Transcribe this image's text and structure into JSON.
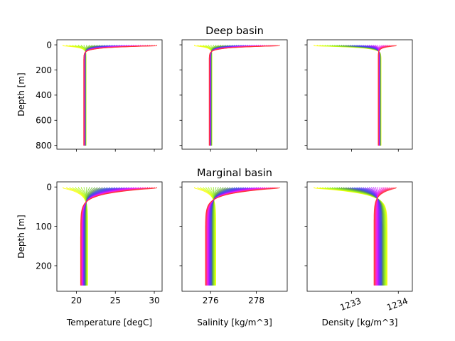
{
  "chart_data": [
    {
      "type": "line",
      "panel": "deep-temperature",
      "row_title": "Deep basin",
      "xlabel": "",
      "ylabel": "Depth [m]",
      "xlim": [
        17.5,
        31
      ],
      "ylim": [
        830,
        -40
      ],
      "y_inverted": true,
      "xticks": [
        20,
        25,
        30
      ],
      "xtick_labels": [],
      "yticks": [
        0,
        200,
        400,
        600,
        800
      ],
      "ytick_labels": [
        "0",
        "200",
        "400",
        "600",
        "800"
      ],
      "profile": {
        "surface_min": 18.3,
        "surface_max": 30.3,
        "deep_value": 21.1,
        "deep_spread": 0.3,
        "max_depth": 800,
        "mixed_layer": 8,
        "thermocline": 40
      }
    },
    {
      "type": "line",
      "panel": "deep-salinity",
      "row_title": "Deep basin",
      "xlabel": "",
      "ylabel": "",
      "xlim": [
        274.75,
        279.35
      ],
      "ylim": [
        830,
        -40
      ],
      "y_inverted": true,
      "xticks": [
        276,
        278
      ],
      "xtick_labels": [],
      "yticks": [
        0,
        200,
        400,
        600,
        800
      ],
      "ytick_labels": [],
      "profile": {
        "surface_min": 275.3,
        "surface_max": 279.0,
        "deep_value": 276.0,
        "deep_spread": 0.12,
        "max_depth": 800,
        "mixed_layer": 8,
        "thermocline": 40
      }
    },
    {
      "type": "line",
      "panel": "deep-density",
      "row_title": "Deep basin",
      "xlabel": "",
      "ylabel": "",
      "xlim": [
        1232.05,
        1234.3
      ],
      "ylim": [
        830,
        -40
      ],
      "y_inverted": true,
      "xticks": [
        1233,
        1234
      ],
      "xtick_labels": [],
      "yticks": [
        0,
        200,
        400,
        600,
        800
      ],
      "ytick_labels": [],
      "profile": {
        "surface_min": 1232.2,
        "surface_max": 1233.95,
        "deep_value": 1233.6,
        "deep_spread": 0.06,
        "max_depth": 800,
        "mixed_layer": 8,
        "thermocline": 40
      }
    },
    {
      "type": "line",
      "panel": "marginal-temperature",
      "row_title": "Marginal basin",
      "xlabel": "Temperature [degC]",
      "ylabel": "Depth [m]",
      "xlim": [
        17.5,
        31
      ],
      "ylim": [
        265,
        -13
      ],
      "y_inverted": true,
      "xticks": [
        20,
        25,
        30
      ],
      "xtick_labels": [
        "20",
        "25",
        "30"
      ],
      "yticks": [
        0,
        100,
        200
      ],
      "ytick_labels": [
        "0",
        "100",
        "200"
      ],
      "profile": {
        "surface_min": 18.3,
        "surface_max": 30.3,
        "deep_value": 21.0,
        "deep_spread": 0.9,
        "max_depth": 250,
        "mixed_layer": 3,
        "thermocline": 40
      }
    },
    {
      "type": "line",
      "panel": "marginal-salinity",
      "row_title": "Marginal basin",
      "xlabel": "Salinity [kg/m^3]",
      "ylabel": "",
      "xlim": [
        274.75,
        279.35
      ],
      "ylim": [
        265,
        -13
      ],
      "y_inverted": true,
      "xticks": [
        276,
        278
      ],
      "xtick_labels": [
        "276",
        "278"
      ],
      "yticks": [
        0,
        100,
        200
      ],
      "ytick_labels": [],
      "profile": {
        "surface_min": 275.3,
        "surface_max": 279.0,
        "deep_value": 276.0,
        "deep_spread": 0.45,
        "max_depth": 250,
        "mixed_layer": 3,
        "thermocline": 40
      }
    },
    {
      "type": "line",
      "panel": "marginal-density",
      "row_title": "Marginal basin",
      "xlabel": "Density [kg/m^3]",
      "ylabel": "",
      "xlim": [
        1232.05,
        1234.3
      ],
      "ylim": [
        265,
        -13
      ],
      "y_inverted": true,
      "xticks": [
        1233,
        1234
      ],
      "xtick_labels": [
        "1233",
        "1234"
      ],
      "xtick_rotation": 20,
      "yticks": [
        0,
        100,
        200
      ],
      "ytick_labels": [],
      "profile": {
        "surface_min": 1232.2,
        "surface_max": 1233.95,
        "deep_value": 1233.62,
        "deep_spread": 0.28,
        "max_depth": 250,
        "mixed_layer": 3,
        "thermocline": 40
      }
    }
  ],
  "series_colors": [
    "#ff3030",
    "#ff2aa0",
    "#e81aff",
    "#a01aff",
    "#5a3cf0",
    "#3a50d8",
    "#5f9a4a",
    "#7fdc2a",
    "#b8ff1a",
    "#ffff00"
  ],
  "axis_color": "#000000"
}
